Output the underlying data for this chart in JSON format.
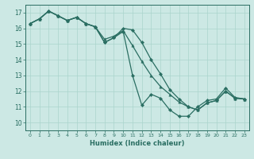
{
  "xlabel": "Humidex (Indice chaleur)",
  "xlim": [
    -0.5,
    23.5
  ],
  "ylim": [
    9.5,
    17.5
  ],
  "yticks": [
    10,
    11,
    12,
    13,
    14,
    15,
    16,
    17
  ],
  "xticks": [
    0,
    1,
    2,
    3,
    4,
    5,
    6,
    7,
    8,
    9,
    10,
    11,
    12,
    13,
    14,
    15,
    16,
    17,
    18,
    19,
    20,
    21,
    22,
    23
  ],
  "bg_color": "#cce8e4",
  "line_color": "#2a6e62",
  "grid_color": "#aad4cc",
  "series1": [
    16.3,
    16.6,
    17.1,
    16.8,
    16.5,
    16.7,
    16.3,
    16.1,
    15.1,
    15.4,
    15.8,
    13.0,
    11.1,
    11.8,
    11.55,
    10.8,
    10.4,
    10.4,
    11.0,
    11.4,
    11.5,
    12.2,
    11.6,
    11.5
  ],
  "series2": [
    16.3,
    16.6,
    17.1,
    16.8,
    16.5,
    16.7,
    16.3,
    16.1,
    15.3,
    15.5,
    15.85,
    14.9,
    13.9,
    13.0,
    12.3,
    11.8,
    11.3,
    11.0,
    10.8,
    11.25,
    11.4,
    12.0,
    11.55,
    11.5
  ],
  "series3": [
    16.3,
    16.6,
    17.1,
    16.8,
    16.5,
    16.7,
    16.3,
    16.1,
    15.1,
    15.4,
    16.0,
    15.9,
    15.1,
    14.0,
    13.1,
    12.1,
    11.5,
    11.0,
    10.8,
    11.25,
    11.4,
    12.0,
    11.55,
    11.5
  ]
}
